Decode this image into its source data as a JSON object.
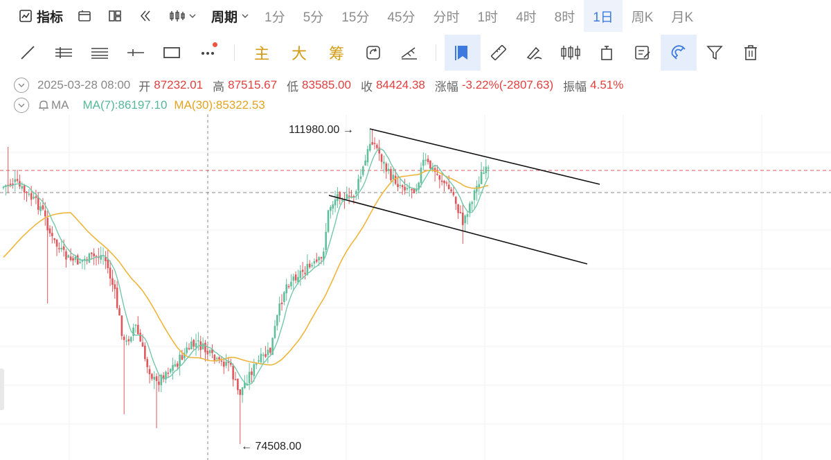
{
  "topbar": {
    "indicator_label": "指标",
    "period_label": "周期",
    "intervals": [
      "1分",
      "5分",
      "15分",
      "45分",
      "分时",
      "1时",
      "4时",
      "8时",
      "1日",
      "周K",
      "月K"
    ],
    "active_interval": "1日"
  },
  "toolbar": {
    "text_tools": [
      "主",
      "大",
      "筹"
    ],
    "icons": [
      "line-tool-icon",
      "parallel-lines-icon",
      "horizontal-lines-icon",
      "horizontal-ray-icon",
      "rectangle-icon",
      "more-icon",
      "cycle-icon",
      "measure-tool-icon",
      "bookmark-icon",
      "ruler-icon",
      "brush-icon",
      "candles-icon",
      "trash-can-icon",
      "note-icon",
      "magnet-icon",
      "filter-icon",
      "delete-icon"
    ]
  },
  "info": {
    "date": "2025-03-28 08:00",
    "open_label": "开",
    "open": "87232.01",
    "high_label": "高",
    "high": "87515.67",
    "low_label": "低",
    "low": "83585.00",
    "close_label": "收",
    "close": "84424.38",
    "change_label": "涨幅",
    "change": "-3.22%(-2807.63)",
    "amplitude_label": "振幅",
    "amplitude": "4.51%",
    "ma_label": "MA",
    "ma7": "MA(7):86197.10",
    "ma30": "MA(30):85322.53"
  },
  "annotations": {
    "high_marker": "111980.00 →",
    "low_marker": "← 74508.00"
  },
  "colors": {
    "up": "#5fbf9a",
    "down": "#e0575b",
    "ma7": "#73c7a8",
    "ma30": "#efb53a",
    "accent": "#3c7ae0"
  },
  "chart_data": {
    "type": "candlestick",
    "series": [
      {
        "name": "MA(7)"
      },
      {
        "name": "MA(30)"
      }
    ],
    "high": 111980.0,
    "low": 74508.0,
    "last_close": 84424.38,
    "ylim": [
      72000,
      118000
    ],
    "grid": true
  }
}
